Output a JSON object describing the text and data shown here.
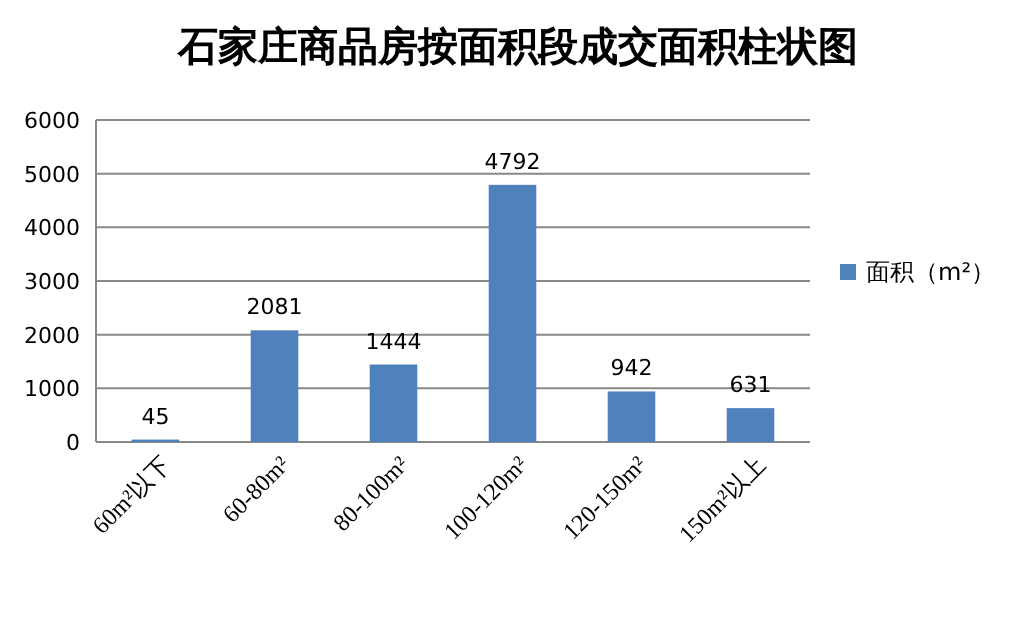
{
  "chart_data": {
    "type": "bar",
    "title": "石家庄商品房按面积段成交面积柱状图",
    "categories": [
      "60m²以下",
      "60-80m²",
      "80-100m²",
      "100-120m²",
      "120-150m²",
      "150m²以上"
    ],
    "series": [
      {
        "name": "面积（m²）",
        "color": "#4f81bd",
        "values": [
          45,
          2081,
          1444,
          4792,
          942,
          631
        ]
      }
    ],
    "ylim": [
      0,
      6000
    ],
    "yticks": [
      0,
      1000,
      2000,
      3000,
      4000,
      5000,
      6000
    ],
    "grid": "y",
    "legend": "right",
    "data_labels": true
  }
}
